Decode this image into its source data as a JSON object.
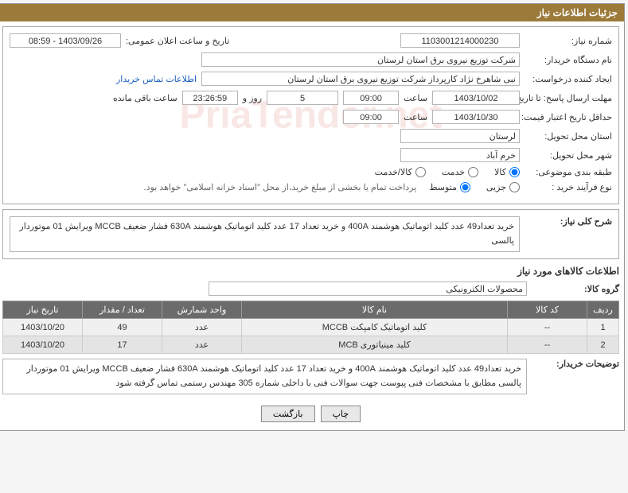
{
  "header": {
    "title": "جزئیات اطلاعات نیاز"
  },
  "form": {
    "need_no_label": "شماره نیاز:",
    "need_no": "1103001214000230",
    "announce_label": "تاریخ و ساعت اعلان عمومی:",
    "announce_value": "1403/09/26 - 08:59",
    "buyer_org_label": "نام دستگاه خریدار:",
    "buyer_org": "شرکت توزیع نیروی برق استان لرستان",
    "requester_label": "ایجاد کننده درخواست:",
    "requester": "نبی شاهرخ نژاد کارپرداز شرکت توزیع نیروی برق استان لرستان",
    "contact_link": "اطلاعات تماس خریدار",
    "deadline_label": "مهلت ارسال پاسخ: تا تاریخ:",
    "deadline_date": "1403/10/02",
    "time_label": "ساعت",
    "deadline_time": "09:00",
    "days_count": "5",
    "days_label": "روز و",
    "countdown": "23:26:59",
    "remaining_label": "ساعت باقی مانده",
    "validity_label": "حداقل تاریخ اعتبار قیمت: تا تاریخ:",
    "validity_date": "1403/10/30",
    "validity_time": "09:00",
    "province_label": "استان محل تحویل:",
    "province": "لرستان",
    "city_label": "شهر محل تحویل:",
    "city": "خرم آباد",
    "category_label": "طبقه بندی موضوعی:",
    "cat_goods": "کالا",
    "cat_service": "خدمت",
    "cat_both": "کالا/خدمت",
    "process_label": "نوع فرآیند خرید :",
    "proc_small": "جزیی",
    "proc_medium": "متوسط",
    "process_note": "پرداخت تمام یا بخشی از مبلغ خرید،از محل \"اسناد خزانه اسلامی\" خواهد بود.",
    "desc_label": "شرح کلی نیاز:",
    "desc_text": "خرید تعداد49 عدد کلید اتوماتیک هوشمند 400A و خرید تعداد 17 عدد کلید اتوماتیک هوشمند 630A فشار ضعیف MCCB ویرایش 01 موتوردار پالسی",
    "items_section": "اطلاعات کالاهای مورد نیاز",
    "group_label": "گروه کالا:",
    "group_value": "محصولات الکترونیکی",
    "buyer_notes_label": "توضیحات خریدار:",
    "buyer_notes": "خرید تعداد49 عدد کلید اتوماتیک هوشمند 400A و خرید تعداد 17 عدد کلید اتوماتیک هوشمند 630A فشار ضعیف MCCB ویرایش 01 موتوردار پالسی مطابق با مشخصات فنی پیوست جهت سوالات فنی با داخلی شماره 305 مهندس رستمی تماس گرفته شود"
  },
  "table": {
    "headers": {
      "row": "ردیف",
      "code": "کد کالا",
      "name": "نام کالا",
      "unit": "واحد شمارش",
      "qty": "تعداد / مقدار",
      "date": "تاریخ نیاز"
    },
    "rows": [
      {
        "n": "1",
        "code": "--",
        "name": "کلید اتوماتیک کامپکت MCCB",
        "unit": "عدد",
        "qty": "49",
        "date": "1403/10/20"
      },
      {
        "n": "2",
        "code": "--",
        "name": "کلید مینیاتوری MCB",
        "unit": "عدد",
        "qty": "17",
        "date": "1403/10/20"
      }
    ]
  },
  "buttons": {
    "print": "چاپ",
    "back": "بازگشت"
  },
  "watermark": "PriaTender.net"
}
